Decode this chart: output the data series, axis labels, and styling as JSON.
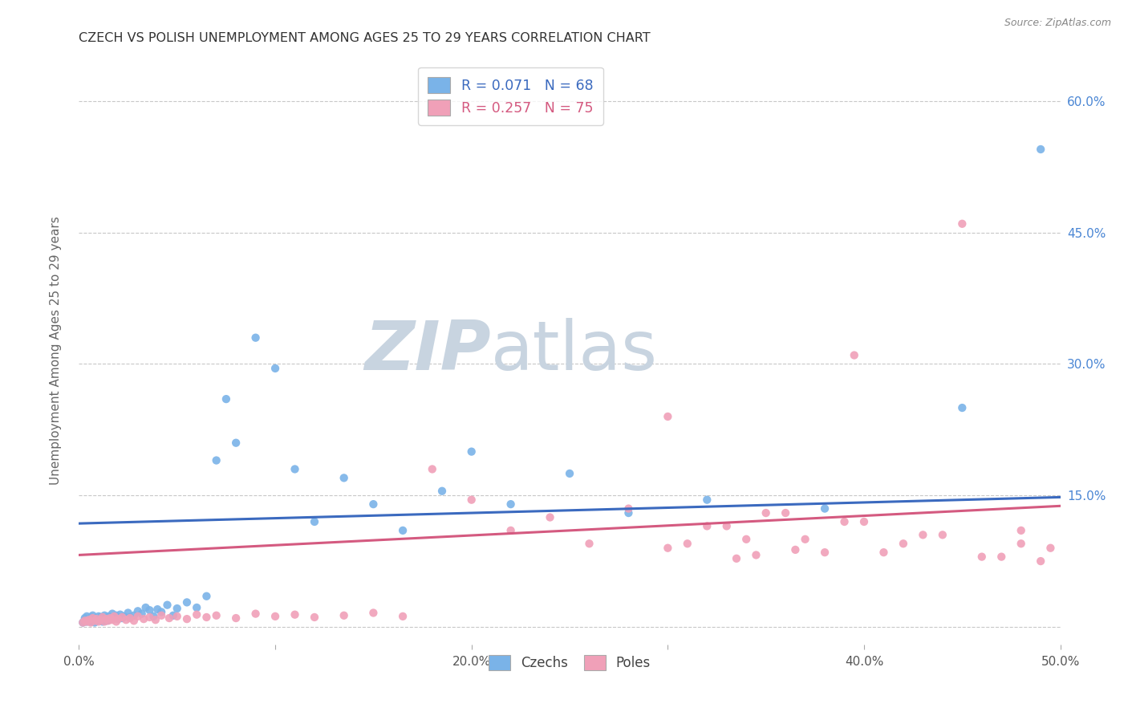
{
  "title": "CZECH VS POLISH UNEMPLOYMENT AMONG AGES 25 TO 29 YEARS CORRELATION CHART",
  "source": "Source: ZipAtlas.com",
  "ylabel": "Unemployment Among Ages 25 to 29 years",
  "xlim": [
    0.0,
    0.5
  ],
  "ylim": [
    -0.02,
    0.65
  ],
  "xticks": [
    0.0,
    0.1,
    0.2,
    0.3,
    0.4,
    0.5
  ],
  "xticklabels": [
    "0.0%",
    "",
    "20.0%",
    "",
    "40.0%",
    "50.0%"
  ],
  "yticks": [
    0.0,
    0.15,
    0.3,
    0.45,
    0.6
  ],
  "yticklabels": [
    "",
    "15.0%",
    "30.0%",
    "45.0%",
    "60.0%"
  ],
  "czechs_color": "#7ab3e8",
  "poles_color": "#f0a0b8",
  "czechs_line_color": "#3b6abf",
  "poles_line_color": "#d45a80",
  "legend_R_czechs": "R = 0.071",
  "legend_N_czechs": "N = 68",
  "legend_R_poles": "R = 0.257",
  "legend_N_poles": "N = 75",
  "background_color": "#ffffff",
  "grid_color": "#c8c8c8",
  "title_color": "#333333",
  "source_color": "#888888",
  "watermark_zip": "ZIP",
  "watermark_atlas": "atlas",
  "watermark_color_zip": "#c8d4e0",
  "watermark_color_atlas": "#c8d4e0",
  "right_ytick_color": "#4a86d4",
  "czechs_x": [
    0.002,
    0.003,
    0.003,
    0.004,
    0.004,
    0.005,
    0.005,
    0.006,
    0.006,
    0.007,
    0.007,
    0.008,
    0.008,
    0.009,
    0.01,
    0.01,
    0.011,
    0.011,
    0.012,
    0.012,
    0.013,
    0.014,
    0.014,
    0.015,
    0.015,
    0.016,
    0.017,
    0.018,
    0.019,
    0.02,
    0.021,
    0.022,
    0.023,
    0.025,
    0.026,
    0.028,
    0.03,
    0.032,
    0.034,
    0.036,
    0.038,
    0.04,
    0.042,
    0.045,
    0.048,
    0.05,
    0.055,
    0.06,
    0.065,
    0.07,
    0.075,
    0.08,
    0.09,
    0.1,
    0.11,
    0.12,
    0.135,
    0.15,
    0.165,
    0.185,
    0.2,
    0.22,
    0.25,
    0.28,
    0.32,
    0.38,
    0.45,
    0.49
  ],
  "czechs_y": [
    0.005,
    0.008,
    0.01,
    0.006,
    0.012,
    0.007,
    0.009,
    0.011,
    0.006,
    0.008,
    0.013,
    0.005,
    0.01,
    0.007,
    0.009,
    0.012,
    0.008,
    0.011,
    0.006,
    0.01,
    0.013,
    0.007,
    0.009,
    0.008,
    0.012,
    0.01,
    0.015,
    0.011,
    0.013,
    0.009,
    0.014,
    0.01,
    0.012,
    0.016,
    0.011,
    0.013,
    0.018,
    0.015,
    0.022,
    0.019,
    0.012,
    0.02,
    0.017,
    0.025,
    0.013,
    0.021,
    0.028,
    0.022,
    0.035,
    0.19,
    0.26,
    0.21,
    0.33,
    0.295,
    0.18,
    0.12,
    0.17,
    0.14,
    0.11,
    0.155,
    0.2,
    0.14,
    0.175,
    0.13,
    0.145,
    0.135,
    0.25,
    0.545
  ],
  "poles_x": [
    0.002,
    0.003,
    0.004,
    0.005,
    0.006,
    0.007,
    0.008,
    0.009,
    0.01,
    0.011,
    0.012,
    0.013,
    0.014,
    0.015,
    0.016,
    0.017,
    0.018,
    0.019,
    0.02,
    0.022,
    0.024,
    0.026,
    0.028,
    0.03,
    0.033,
    0.036,
    0.039,
    0.042,
    0.046,
    0.05,
    0.055,
    0.06,
    0.065,
    0.07,
    0.08,
    0.09,
    0.1,
    0.11,
    0.12,
    0.135,
    0.15,
    0.165,
    0.18,
    0.2,
    0.22,
    0.24,
    0.26,
    0.28,
    0.3,
    0.32,
    0.34,
    0.36,
    0.38,
    0.4,
    0.42,
    0.44,
    0.46,
    0.48,
    0.49,
    0.495,
    0.3,
    0.31,
    0.33,
    0.35,
    0.37,
    0.39,
    0.41,
    0.43,
    0.45,
    0.47,
    0.48,
    0.395,
    0.335,
    0.365,
    0.345
  ],
  "poles_y": [
    0.005,
    0.007,
    0.006,
    0.008,
    0.005,
    0.01,
    0.007,
    0.009,
    0.006,
    0.008,
    0.011,
    0.006,
    0.009,
    0.007,
    0.01,
    0.008,
    0.012,
    0.006,
    0.009,
    0.011,
    0.008,
    0.01,
    0.007,
    0.012,
    0.009,
    0.011,
    0.008,
    0.013,
    0.01,
    0.012,
    0.009,
    0.014,
    0.011,
    0.013,
    0.01,
    0.015,
    0.012,
    0.014,
    0.011,
    0.013,
    0.016,
    0.012,
    0.18,
    0.145,
    0.11,
    0.125,
    0.095,
    0.135,
    0.09,
    0.115,
    0.1,
    0.13,
    0.085,
    0.12,
    0.095,
    0.105,
    0.08,
    0.11,
    0.075,
    0.09,
    0.24,
    0.095,
    0.115,
    0.13,
    0.1,
    0.12,
    0.085,
    0.105,
    0.46,
    0.08,
    0.095,
    0.31,
    0.078,
    0.088,
    0.082
  ],
  "czechs_line_x": [
    0.0,
    0.5
  ],
  "czechs_line_y": [
    0.118,
    0.148
  ],
  "poles_line_x": [
    0.0,
    0.5
  ],
  "poles_line_y": [
    0.082,
    0.138
  ]
}
